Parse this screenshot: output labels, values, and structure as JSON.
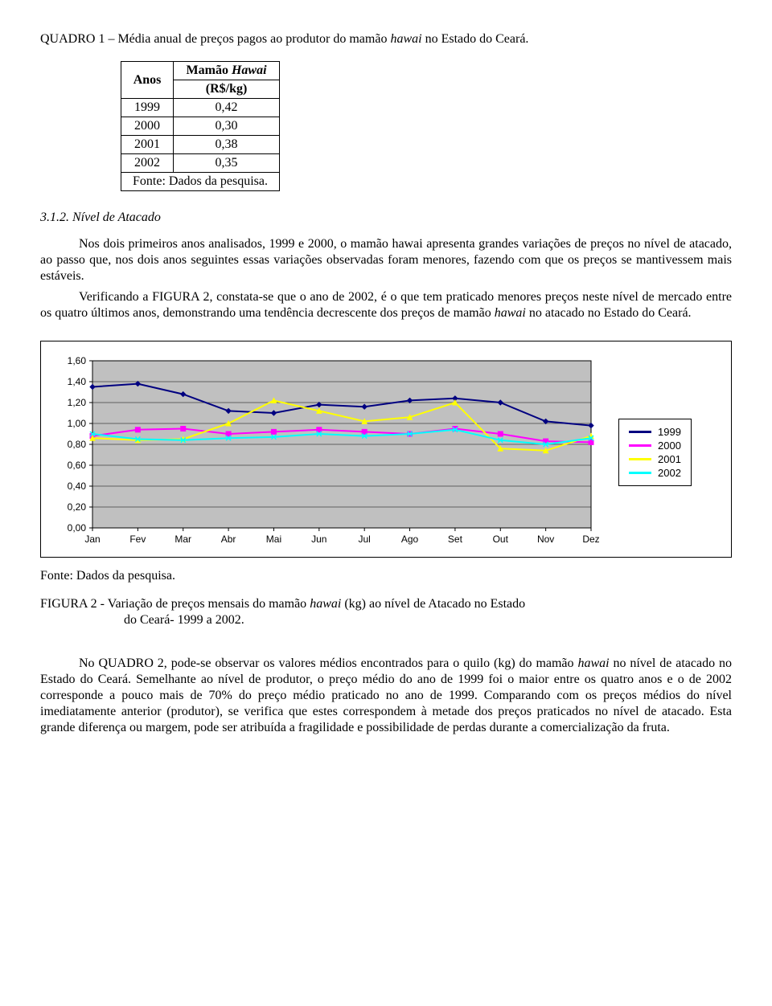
{
  "quadro_title_prefix": "QUADRO 1 – Média anual de preços pagos ao produtor do mamão ",
  "quadro_title_italic": "hawai",
  "quadro_title_suffix": " no Estado do Ceará.",
  "table1": {
    "col1_header": "Anos",
    "col2_header_line1": "Mamão ",
    "col2_header_italic": "Hawai",
    "col2_header_line2": "(R$/kg)",
    "rows": [
      {
        "ano": "1999",
        "valor": "0,42"
      },
      {
        "ano": "2000",
        "valor": "0,30"
      },
      {
        "ano": "2001",
        "valor": "0,38"
      },
      {
        "ano": "2002",
        "valor": "0,35"
      }
    ],
    "footer": "Fonte: Dados da pesquisa."
  },
  "section_heading": "3.1.2. Nível de Atacado",
  "para1": "Nos dois primeiros anos analisados, 1999 e 2000, o mamão hawai apresenta grandes variações de preços no nível de atacado, ao passo que, nos dois anos seguintes essas variações observadas foram menores, fazendo com que os preços se mantivessem mais estáveis.",
  "para2_a": "Verificando a FIGURA 2, constata-se que o ano de 2002, é o que tem praticado menores preços neste nível de mercado entre os quatro últimos anos, demonstrando uma tendência decrescente dos preços de mamão ",
  "para2_italic": "hawai",
  "para2_b": " no atacado no Estado do Ceará.",
  "chart": {
    "type": "line",
    "plot_bg": "#c0c0c0",
    "grid_color": "#000000",
    "axis_color": "#000000",
    "ylim": [
      0,
      1.6
    ],
    "ytick_step": 0.2,
    "yticks": [
      "0,00",
      "0,20",
      "0,40",
      "0,60",
      "0,80",
      "1,00",
      "1,20",
      "1,40",
      "1,60"
    ],
    "categories": [
      "Jan",
      "Fev",
      "Mar",
      "Abr",
      "Mai",
      "Jun",
      "Jul",
      "Ago",
      "Set",
      "Out",
      "Nov",
      "Dez"
    ],
    "series": [
      {
        "name": "1999",
        "color": "#000080",
        "width": 2,
        "marker": "diamond",
        "values": [
          1.35,
          1.38,
          1.28,
          1.12,
          1.1,
          1.18,
          1.16,
          1.22,
          1.24,
          1.2,
          1.02,
          0.98
        ]
      },
      {
        "name": "2000",
        "color": "#ff00ff",
        "width": 2,
        "marker": "square",
        "values": [
          0.88,
          0.94,
          0.95,
          0.9,
          0.92,
          0.94,
          0.92,
          0.9,
          0.95,
          0.9,
          0.83,
          0.82
        ]
      },
      {
        "name": "2001",
        "color": "#ffff00",
        "width": 2,
        "marker": "triangle",
        "values": [
          0.86,
          0.84,
          0.85,
          1.0,
          1.22,
          1.12,
          1.02,
          1.06,
          1.2,
          0.76,
          0.74,
          0.88
        ]
      },
      {
        "name": "2002",
        "color": "#00ffff",
        "width": 2,
        "marker": "x",
        "values": [
          0.9,
          0.85,
          0.84,
          0.86,
          0.87,
          0.9,
          0.88,
          0.9,
          0.94,
          0.84,
          0.8,
          0.86
        ]
      }
    ],
    "tick_fontsize": 12,
    "legend_fontsize": 13
  },
  "fonte_text": "Fonte: Dados da pesquisa.",
  "figura_caption_a": "FIGURA 2 - Variação de preços mensais do mamão ",
  "figura_caption_italic": "hawai",
  "figura_caption_b": " (kg) ao nível de Atacado no Estado ",
  "figura_caption_c": "do Ceará- 1999 a 2002.",
  "para3_a": "No QUADRO 2, pode-se observar os valores médios encontrados para o quilo (kg) do mamão ",
  "para3_italic": "hawai",
  "para3_b": " no nível de atacado no Estado do Ceará. Semelhante ao nível de produtor, o preço médio do ano de 1999 foi o maior entre os quatro anos e o de 2002 corresponde a pouco mais de 70% do preço médio praticado no ano de 1999. Comparando com os preços médios do nível imediatamente anterior (produtor), se verifica que estes correspondem à metade dos preços praticados no nível de atacado. Esta grande diferença ou margem, pode ser atribuída a fragilidade e  possibilidade de perdas durante a comercialização da fruta."
}
